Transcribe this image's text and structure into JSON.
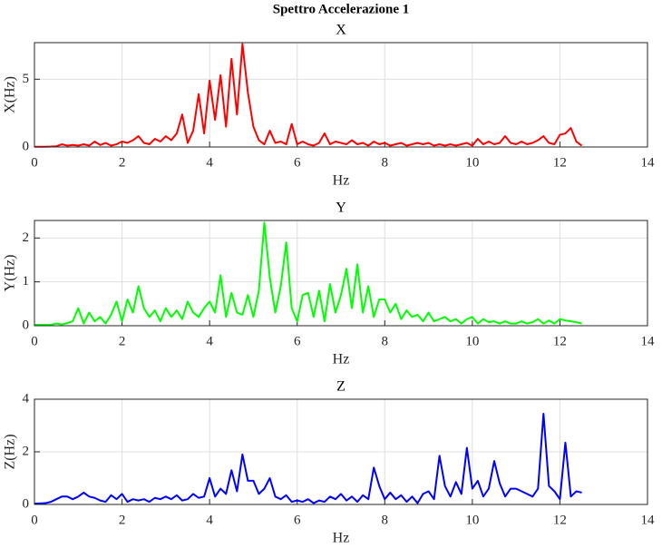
{
  "title": "Spettro Accelerazione 1",
  "chart_data": [
    {
      "type": "line",
      "title": "X",
      "xlabel": "Hz",
      "ylabel": "X(Hz)",
      "color": "#ff0000",
      "grid": true,
      "xlim": [
        0,
        14
      ],
      "xticks": [
        0,
        2,
        4,
        6,
        8,
        10,
        12,
        14
      ],
      "ylim": [
        0,
        7.7
      ],
      "yticks": [
        0,
        5
      ],
      "x": [
        0,
        0.125,
        0.25,
        0.375,
        0.5,
        0.625,
        0.75,
        0.875,
        1,
        1.125,
        1.25,
        1.375,
        1.5,
        1.625,
        1.75,
        1.875,
        2,
        2.125,
        2.25,
        2.375,
        2.5,
        2.625,
        2.75,
        2.875,
        3,
        3.125,
        3.25,
        3.375,
        3.5,
        3.625,
        3.75,
        3.875,
        4,
        4.125,
        4.25,
        4.375,
        4.5,
        4.625,
        4.75,
        4.875,
        5,
        5.125,
        5.25,
        5.375,
        5.5,
        5.625,
        5.75,
        5.875,
        6,
        6.125,
        6.25,
        6.375,
        6.5,
        6.625,
        6.75,
        6.875,
        7,
        7.125,
        7.25,
        7.375,
        7.5,
        7.625,
        7.75,
        7.875,
        8,
        8.125,
        8.25,
        8.375,
        8.5,
        8.625,
        8.75,
        8.875,
        9,
        9.125,
        9.25,
        9.375,
        9.5,
        9.625,
        9.75,
        9.875,
        10,
        10.125,
        10.25,
        10.375,
        10.5,
        10.625,
        10.75,
        10.875,
        11,
        11.125,
        11.25,
        11.375,
        11.5,
        11.625,
        11.75,
        11.875,
        12,
        12.125,
        12.25,
        12.375,
        12.5
      ],
      "values": [
        0.02,
        0.02,
        0.02,
        0.03,
        0.05,
        0.2,
        0.1,
        0.15,
        0.1,
        0.2,
        0.1,
        0.4,
        0.15,
        0.3,
        0.1,
        0.2,
        0.4,
        0.3,
        0.5,
        0.8,
        0.3,
        0.2,
        0.6,
        0.4,
        0.8,
        0.5,
        1.0,
        2.4,
        0.3,
        1.2,
        3.9,
        1.0,
        4.9,
        2.0,
        5.3,
        1.5,
        6.5,
        2.4,
        7.6,
        4.0,
        1.5,
        0.5,
        0.2,
        1.2,
        0.3,
        0.4,
        0.2,
        1.7,
        0.2,
        0.4,
        0.2,
        0.1,
        0.3,
        1.0,
        0.2,
        0.4,
        0.3,
        0.2,
        0.5,
        0.2,
        0.3,
        0.1,
        0.4,
        0.2,
        0.3,
        0.1,
        0.2,
        0.3,
        0.1,
        0.2,
        0.3,
        0.2,
        0.3,
        0.1,
        0.2,
        0.1,
        0.2,
        0.1,
        0.2,
        0.3,
        0.1,
        0.6,
        0.2,
        0.4,
        0.2,
        0.3,
        0.8,
        0.3,
        0.2,
        0.4,
        0.2,
        0.3,
        0.5,
        0.8,
        0.3,
        0.2,
        0.9,
        1.0,
        1.4,
        0.4,
        0.1
      ]
    },
    {
      "type": "line",
      "title": "Y",
      "xlabel": "Hz",
      "ylabel": "Y(Hz)",
      "color": "#00ff00",
      "grid": true,
      "xlim": [
        0,
        14
      ],
      "xticks": [
        0,
        2,
        4,
        6,
        8,
        10,
        12,
        14
      ],
      "ylim": [
        0,
        2.4
      ],
      "yticks": [
        0,
        1,
        2
      ],
      "x": [
        0,
        0.125,
        0.25,
        0.375,
        0.5,
        0.625,
        0.75,
        0.875,
        1,
        1.125,
        1.25,
        1.375,
        1.5,
        1.625,
        1.75,
        1.875,
        2,
        2.125,
        2.25,
        2.375,
        2.5,
        2.625,
        2.75,
        2.875,
        3,
        3.125,
        3.25,
        3.375,
        3.5,
        3.625,
        3.75,
        3.875,
        4,
        4.125,
        4.25,
        4.375,
        4.5,
        4.625,
        4.75,
        4.875,
        5,
        5.125,
        5.25,
        5.375,
        5.5,
        5.625,
        5.75,
        5.875,
        6,
        6.125,
        6.25,
        6.375,
        6.5,
        6.625,
        6.75,
        6.875,
        7,
        7.125,
        7.25,
        7.375,
        7.5,
        7.625,
        7.75,
        7.875,
        8,
        8.125,
        8.25,
        8.375,
        8.5,
        8.625,
        8.75,
        8.875,
        9,
        9.125,
        9.25,
        9.375,
        9.5,
        9.625,
        9.75,
        9.875,
        10,
        10.125,
        10.25,
        10.375,
        10.5,
        10.625,
        10.75,
        10.875,
        11,
        11.125,
        11.25,
        11.375,
        11.5,
        11.625,
        11.75,
        11.875,
        12,
        12.125,
        12.25,
        12.375,
        12.5
      ],
      "values": [
        0.02,
        0.02,
        0.02,
        0.02,
        0.05,
        0.03,
        0.06,
        0.1,
        0.4,
        0.05,
        0.3,
        0.1,
        0.2,
        0.05,
        0.25,
        0.55,
        0.1,
        0.6,
        0.3,
        0.9,
        0.4,
        0.2,
        0.35,
        0.1,
        0.4,
        0.2,
        0.35,
        0.15,
        0.55,
        0.3,
        0.2,
        0.4,
        0.55,
        0.3,
        1.15,
        0.2,
        0.75,
        0.3,
        0.25,
        0.7,
        0.2,
        0.8,
        2.35,
        1.1,
        0.3,
        0.9,
        1.9,
        0.4,
        0.1,
        0.7,
        0.75,
        0.2,
        0.8,
        0.1,
        0.95,
        0.3,
        0.7,
        1.3,
        0.4,
        1.4,
        0.3,
        0.9,
        0.2,
        0.6,
        0.6,
        0.3,
        0.5,
        0.15,
        0.35,
        0.2,
        0.25,
        0.1,
        0.3,
        0.1,
        0.15,
        0.2,
        0.1,
        0.15,
        0.05,
        0.15,
        0.2,
        0.05,
        0.15,
        0.08,
        0.1,
        0.05,
        0.1,
        0.05,
        0.05,
        0.1,
        0.05,
        0.08,
        0.15,
        0.05,
        0.12,
        0.05,
        0.15,
        0.12,
        0.1,
        0.08,
        0.05
      ]
    },
    {
      "type": "line",
      "title": "Z",
      "xlabel": "Hz",
      "ylabel": "Z(Hz)",
      "color": "#0000ff",
      "grid": true,
      "xlim": [
        0,
        14
      ],
      "xticks": [
        0,
        2,
        4,
        6,
        8,
        10,
        12,
        14
      ],
      "ylim": [
        0,
        4
      ],
      "yticks": [
        0,
        2,
        4
      ],
      "x": [
        0,
        0.125,
        0.25,
        0.375,
        0.5,
        0.625,
        0.75,
        0.875,
        1,
        1.125,
        1.25,
        1.375,
        1.5,
        1.625,
        1.75,
        1.875,
        2,
        2.125,
        2.25,
        2.375,
        2.5,
        2.625,
        2.75,
        2.875,
        3,
        3.125,
        3.25,
        3.375,
        3.5,
        3.625,
        3.75,
        3.875,
        4,
        4.125,
        4.25,
        4.375,
        4.5,
        4.625,
        4.75,
        4.875,
        5,
        5.125,
        5.25,
        5.375,
        5.5,
        5.625,
        5.75,
        5.875,
        6,
        6.125,
        6.25,
        6.375,
        6.5,
        6.625,
        6.75,
        6.875,
        7,
        7.125,
        7.25,
        7.375,
        7.5,
        7.625,
        7.75,
        7.875,
        8,
        8.125,
        8.25,
        8.375,
        8.5,
        8.625,
        8.75,
        8.875,
        9,
        9.125,
        9.25,
        9.375,
        9.5,
        9.625,
        9.75,
        9.875,
        10,
        10.125,
        10.25,
        10.375,
        10.5,
        10.625,
        10.75,
        10.875,
        11,
        11.125,
        11.25,
        11.375,
        11.5,
        11.625,
        11.75,
        11.875,
        12,
        12.125,
        12.25,
        12.375,
        12.5
      ],
      "values": [
        0.03,
        0.04,
        0.05,
        0.1,
        0.2,
        0.3,
        0.3,
        0.2,
        0.3,
        0.45,
        0.3,
        0.25,
        0.15,
        0.1,
        0.35,
        0.2,
        0.4,
        0.1,
        0.2,
        0.15,
        0.2,
        0.1,
        0.25,
        0.2,
        0.3,
        0.2,
        0.35,
        0.15,
        0.2,
        0.4,
        0.25,
        0.3,
        1.0,
        0.3,
        0.6,
        0.4,
        1.3,
        0.5,
        1.9,
        0.9,
        0.9,
        0.4,
        0.6,
        1.0,
        0.3,
        0.2,
        0.35,
        0.1,
        0.15,
        0.1,
        0.2,
        0.05,
        0.15,
        0.1,
        0.3,
        0.2,
        0.4,
        0.15,
        0.3,
        0.1,
        0.35,
        0.2,
        1.4,
        0.7,
        0.2,
        0.45,
        0.2,
        0.35,
        0.1,
        0.3,
        0.05,
        0.4,
        0.5,
        0.2,
        1.85,
        0.7,
        0.3,
        0.85,
        0.4,
        2.15,
        0.6,
        0.9,
        0.3,
        0.6,
        1.65,
        0.8,
        0.3,
        0.6,
        0.6,
        0.5,
        0.4,
        0.3,
        0.6,
        3.45,
        0.7,
        0.5,
        0.2,
        2.35,
        0.3,
        0.5,
        0.45
      ]
    }
  ]
}
